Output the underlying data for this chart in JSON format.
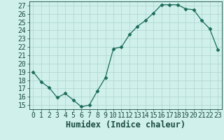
{
  "x": [
    0,
    1,
    2,
    3,
    4,
    5,
    6,
    7,
    8,
    9,
    10,
    11,
    12,
    13,
    14,
    15,
    16,
    17,
    18,
    19,
    20,
    21,
    22,
    23
  ],
  "y": [
    19,
    17.8,
    17.1,
    15.9,
    16.4,
    15.6,
    14.8,
    15.0,
    16.7,
    18.3,
    21.8,
    22.0,
    23.5,
    24.5,
    25.2,
    26.1,
    27.1,
    27.1,
    27.1,
    26.6,
    26.5,
    25.2,
    24.2,
    21.7
  ],
  "xlabel": "Humidex (Indice chaleur)",
  "xlim": [
    -0.5,
    23.5
  ],
  "ylim": [
    14.5,
    27.5
  ],
  "yticks": [
    15,
    16,
    17,
    18,
    19,
    20,
    21,
    22,
    23,
    24,
    25,
    26,
    27
  ],
  "xticks": [
    0,
    1,
    2,
    3,
    4,
    5,
    6,
    7,
    8,
    9,
    10,
    11,
    12,
    13,
    14,
    15,
    16,
    17,
    18,
    19,
    20,
    21,
    22,
    23
  ],
  "line_color": "#1a6b5a",
  "marker": "D",
  "marker_size": 2.5,
  "bg_color": "#cff0eb",
  "grid_color": "#aed4cd",
  "text_color": "#1a4a40",
  "font_size": 7.5,
  "xlabel_fontsize": 8.5
}
